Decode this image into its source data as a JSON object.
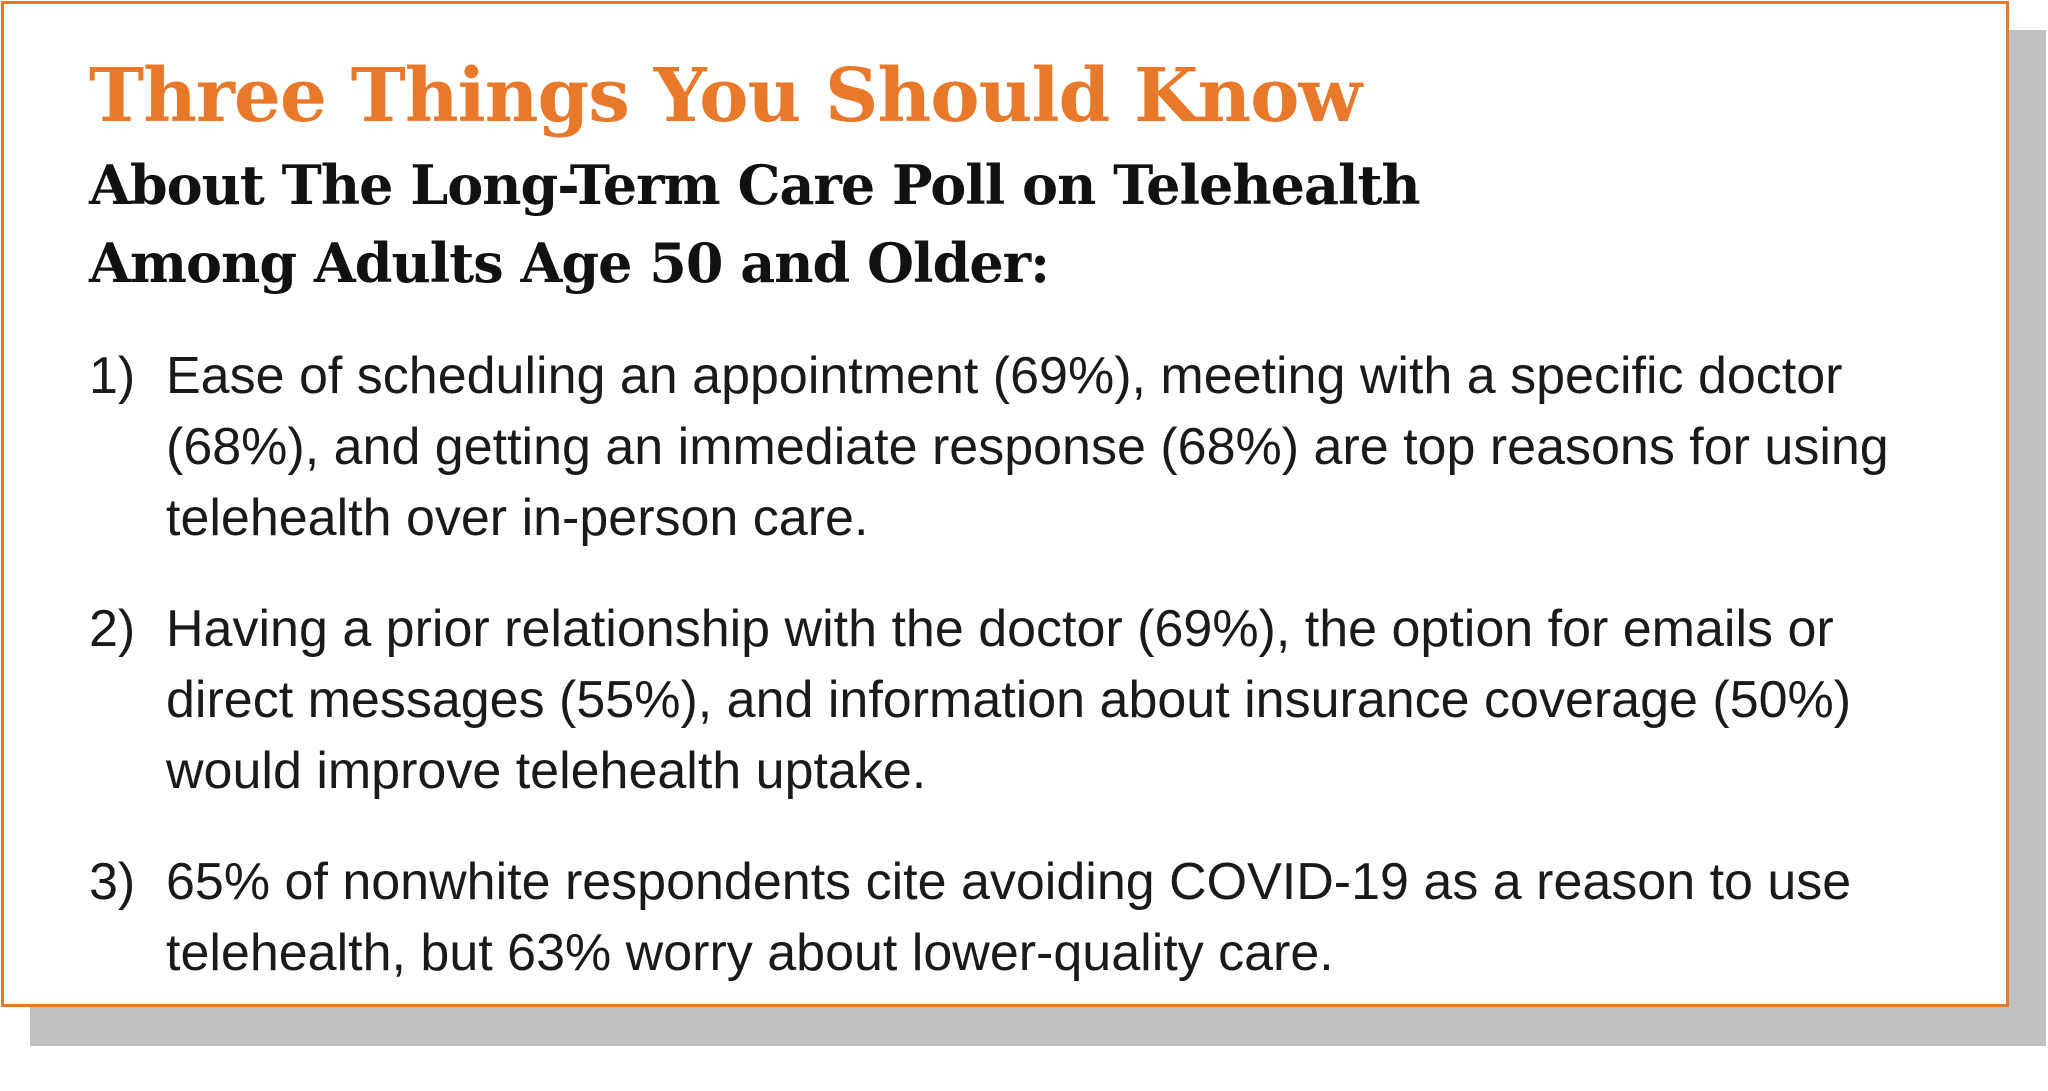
{
  "title": "Three Things You Should Know",
  "subtitle": {
    "line1": "About The Long-Term Care Poll on Telehealth",
    "line2": "Among Adults Age 50 and Older:"
  },
  "points": [
    {
      "number": "1)",
      "lines": [
        "Ease of scheduling an appointment (69%), meeting with a specific doctor",
        "(68%), and getting an immediate response (68%) are top reasons for using",
        "telehealth over in-person care."
      ]
    },
    {
      "number": "2)",
      "lines": [
        "Having a prior relationship with the doctor (69%), the option for emails or",
        "direct messages (55%), and information about insurance coverage (50%)",
        "would improve telehealth uptake."
      ]
    },
    {
      "number": "3)",
      "lines": [
        "65% of nonwhite respondents cite avoiding COVID-19 as a reason to use",
        "telehealth, but 63% worry about lower-quality care."
      ]
    }
  ],
  "colors": {
    "accent": "#e8792b",
    "shadow": "#c0c0c0",
    "text": "#1a1a1a"
  }
}
